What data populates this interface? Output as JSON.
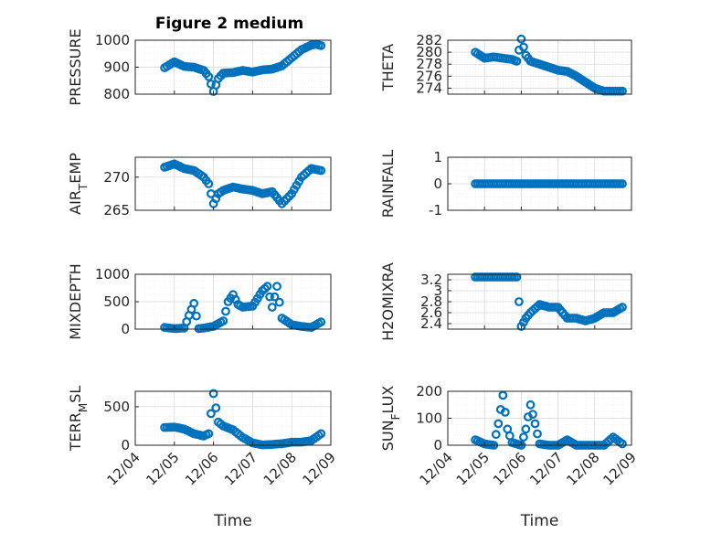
{
  "figure": {
    "title": "Figure 2 medium",
    "marker_color": "#0072BD",
    "time_axis": {
      "range": [
        "12/04",
        "12/09"
      ],
      "tick_labels": [
        "12/04",
        "12/05",
        "12/06",
        "12/07",
        "12/08",
        "12/09"
      ],
      "label": "Time"
    }
  },
  "chart_data": [
    {
      "type": "scatter",
      "ylabel": "PRESSURE",
      "ylim": [
        800,
        1000
      ],
      "yticks": [
        800,
        900,
        1000
      ],
      "ytick_labels": [
        "800",
        "900",
        "1000"
      ],
      "show_xticklabels": false,
      "show_xlabel": false,
      "title": "Figure 2 medium",
      "x": [
        "12/04 18:00",
        "12/05 00:00",
        "12/05 06:00",
        "12/05 12:00",
        "12/05 18:00",
        "12/05 21:00",
        "12/06 00:00",
        "12/06 03:00",
        "12/06 06:00",
        "12/06 12:00",
        "12/06 18:00",
        "12/07 00:00",
        "12/07 06:00",
        "12/07 12:00",
        "12/07 18:00",
        "12/08 00:00",
        "12/08 06:00",
        "12/08 12:00",
        "12/08 15:00",
        "12/08 18:00"
      ],
      "y": [
        898,
        920,
        903,
        900,
        888,
        865,
        810,
        858,
        878,
        880,
        888,
        882,
        890,
        893,
        905,
        935,
        965,
        982,
        985,
        980
      ]
    },
    {
      "type": "scatter",
      "ylabel": "THETA",
      "ylim": [
        273,
        282
      ],
      "yticks": [
        274,
        276,
        278,
        280,
        282
      ],
      "ytick_labels": [
        "274",
        "276",
        "278",
        "280",
        "282"
      ],
      "show_xticklabels": false,
      "show_xlabel": false,
      "x": [
        "12/04 18:00",
        "12/05 00:00",
        "12/05 06:00",
        "12/05 12:00",
        "12/05 18:00",
        "12/05 21:00",
        "12/06 00:00",
        "12/06 03:00",
        "12/06 06:00",
        "12/06 12:00",
        "12/06 18:00",
        "12/07 00:00",
        "12/07 06:00",
        "12/07 12:00",
        "12/07 18:00",
        "12/08 00:00",
        "12/08 06:00",
        "12/08 12:00",
        "12/08 18:00"
      ],
      "y": [
        280,
        279,
        279.2,
        279,
        278.8,
        278.5,
        282.2,
        279.5,
        278.5,
        278,
        277.5,
        277,
        276.8,
        276,
        275,
        274,
        273.5,
        273.5,
        273.5
      ]
    },
    {
      "type": "scatter",
      "ylabel": "AIR_TEMP",
      "ylim": [
        265,
        273
      ],
      "yticks": [
        265,
        270
      ],
      "ytick_labels": [
        "265",
        "270"
      ],
      "show_xticklabels": false,
      "show_xlabel": false,
      "x": [
        "12/04 18:00",
        "12/05 00:00",
        "12/05 06:00",
        "12/05 12:00",
        "12/05 18:00",
        "12/05 21:00",
        "12/06 00:00",
        "12/06 03:00",
        "12/06 06:00",
        "12/06 12:00",
        "12/06 18:00",
        "12/07 00:00",
        "12/07 06:00",
        "12/07 12:00",
        "12/07 18:00",
        "12/08 00:00",
        "12/08 06:00",
        "12/08 12:00",
        "12/08 18:00"
      ],
      "y": [
        271.5,
        272,
        271.3,
        271,
        270,
        269,
        266,
        267.5,
        268,
        268.5,
        268.2,
        268,
        267.5,
        267.8,
        266,
        267.5,
        270,
        271.3,
        271
      ],
      "ylabel_sub": "T"
    },
    {
      "type": "scatter",
      "ylabel": "RAINFALL",
      "ylim": [
        -1,
        1
      ],
      "yticks": [
        -1,
        0,
        1
      ],
      "ytick_labels": [
        "-1",
        "0",
        "1"
      ],
      "show_xticklabels": false,
      "show_xlabel": false,
      "x": [
        "12/04 18:00",
        "12/08 18:00"
      ],
      "y": [
        0,
        0
      ]
    },
    {
      "type": "scatter",
      "ylabel": "MIXDEPTH",
      "ylim": [
        0,
        1000
      ],
      "yticks": [
        0,
        500,
        1000
      ],
      "ytick_labels": [
        "0",
        "500",
        "1000"
      ],
      "show_xticklabels": false,
      "show_xlabel": false,
      "x": [
        "12/04 18:00",
        "12/05 00:00",
        "12/05 06:00",
        "12/05 09:00",
        "12/05 12:00",
        "12/05 15:00",
        "12/05 18:00",
        "12/06 00:00",
        "12/06 06:00",
        "12/06 09:00",
        "12/06 12:00",
        "12/06 15:00",
        "12/06 18:00",
        "12/07 00:00",
        "12/07 06:00",
        "12/07 09:00",
        "12/07 12:00",
        "12/07 15:00",
        "12/07 18:00",
        "12/08 00:00",
        "12/08 06:00",
        "12/08 12:00",
        "12/08 18:00"
      ],
      "y": [
        30,
        10,
        20,
        250,
        470,
        10,
        20,
        50,
        150,
        500,
        630,
        450,
        400,
        420,
        700,
        780,
        400,
        780,
        200,
        80,
        50,
        30,
        130
      ]
    },
    {
      "type": "scatter",
      "ylabel": "H2OMIXRA",
      "ylim": [
        2.3,
        3.3
      ],
      "yticks": [
        2.4,
        2.6,
        2.8,
        3,
        3.2
      ],
      "ytick_labels": [
        "2.4",
        "2.6",
        "2.8",
        "3",
        "3.2"
      ],
      "show_xticklabels": false,
      "show_xlabel": false,
      "x": [
        "12/04 18:00",
        "12/05 00:00",
        "12/05 06:00",
        "12/05 12:00",
        "12/05 18:00",
        "12/05 21:00",
        "12/06 00:00",
        "12/06 03:00",
        "12/06 06:00",
        "12/06 12:00",
        "12/06 18:00",
        "12/07 00:00",
        "12/07 06:00",
        "12/07 12:00",
        "12/07 18:00",
        "12/08 00:00",
        "12/08 06:00",
        "12/08 12:00",
        "12/08 18:00"
      ],
      "y": [
        3.25,
        3.25,
        3.25,
        3.25,
        3.25,
        3.25,
        2.35,
        2.5,
        2.6,
        2.75,
        2.7,
        2.7,
        2.5,
        2.5,
        2.45,
        2.5,
        2.6,
        2.6,
        2.7
      ]
    },
    {
      "type": "scatter",
      "ylabel": "TERR_MSL",
      "ylim": [
        0,
        700
      ],
      "yticks": [
        0,
        500
      ],
      "ytick_labels": [
        "0",
        "500"
      ],
      "show_xticklabels": true,
      "show_xlabel": true,
      "x": [
        "12/04 18:00",
        "12/05 00:00",
        "12/05 06:00",
        "12/05 12:00",
        "12/05 18:00",
        "12/05 21:00",
        "12/06 00:00",
        "12/06 03:00",
        "12/06 06:00",
        "12/06 12:00",
        "12/06 18:00",
        "12/07 00:00",
        "12/07 06:00",
        "12/07 12:00",
        "12/07 18:00",
        "12/08 00:00",
        "12/08 06:00",
        "12/08 12:00",
        "12/08 18:00"
      ],
      "y": [
        230,
        235,
        210,
        150,
        120,
        150,
        670,
        300,
        250,
        200,
        100,
        30,
        5,
        10,
        20,
        40,
        40,
        60,
        150
      ],
      "ylabel_sub": "M"
    },
    {
      "type": "scatter",
      "ylabel": "SUN_FLUX",
      "ylim": [
        0,
        200
      ],
      "yticks": [
        0,
        100,
        200
      ],
      "ytick_labels": [
        "0",
        "100",
        "200"
      ],
      "show_xticklabels": true,
      "show_xlabel": true,
      "x": [
        "12/04 18:00",
        "12/05 00:00",
        "12/05 06:00",
        "12/05 09:00",
        "12/05 12:00",
        "12/05 15:00",
        "12/05 18:00",
        "12/06 00:00",
        "12/06 03:00",
        "12/06 06:00",
        "12/06 09:00",
        "12/06 12:00",
        "12/06 18:00",
        "12/07 00:00",
        "12/07 06:00",
        "12/07 12:00",
        "12/07 18:00",
        "12/08 00:00",
        "12/08 06:00",
        "12/08 12:00",
        "12/08 18:00"
      ],
      "y": [
        20,
        5,
        0,
        80,
        185,
        60,
        10,
        0,
        60,
        150,
        80,
        5,
        0,
        0,
        20,
        0,
        0,
        0,
        0,
        30,
        5
      ],
      "ylabel_sub": "F"
    }
  ]
}
